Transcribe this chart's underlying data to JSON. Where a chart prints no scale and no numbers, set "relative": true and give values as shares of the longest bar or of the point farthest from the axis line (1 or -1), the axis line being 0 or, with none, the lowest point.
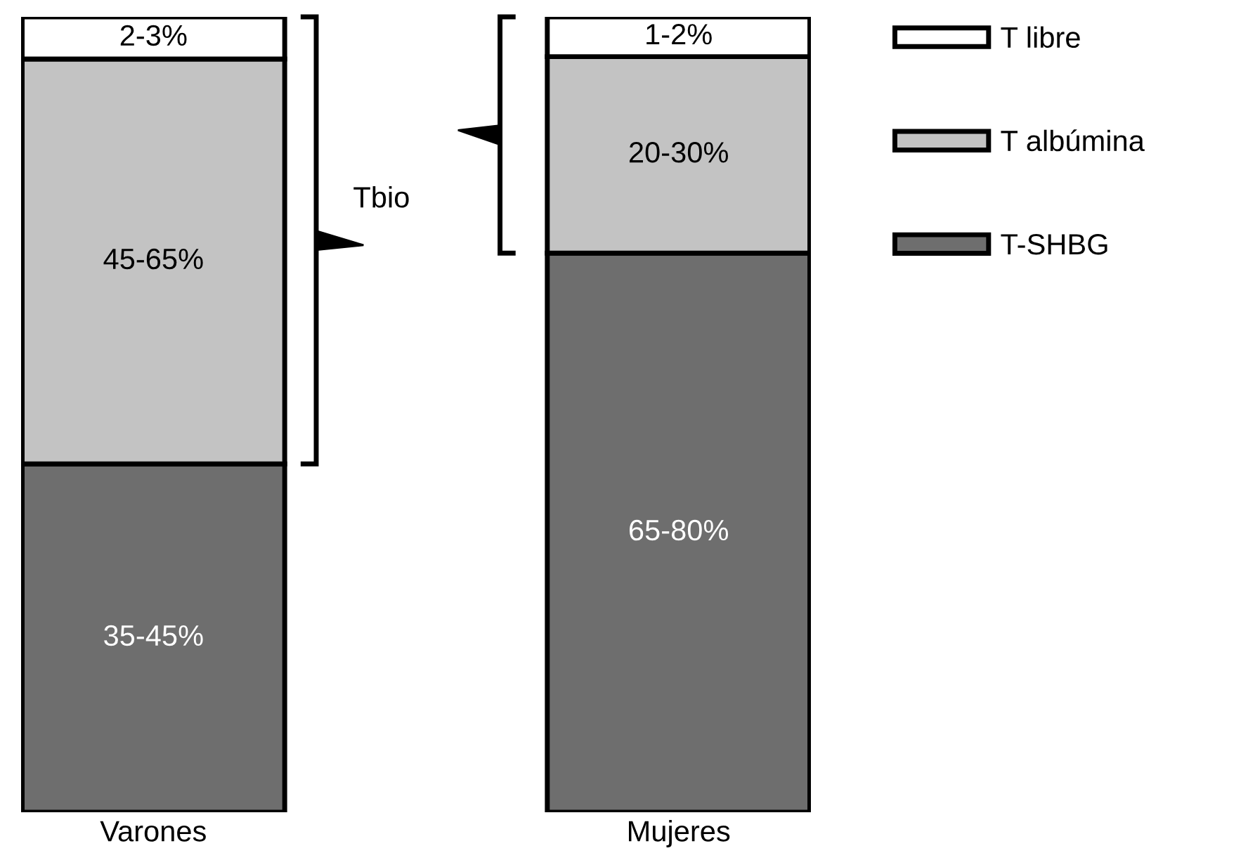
{
  "chart_data": {
    "type": "bar",
    "stacked": true,
    "relative": true,
    "categories": [
      "Varones",
      "Mujeres"
    ],
    "series": [
      {
        "name": "T-SHBG",
        "color": "#6e6e6e",
        "values": [
          0.438,
          0.703
        ]
      },
      {
        "name": "T albúmina",
        "color": "#c3c3c3",
        "values": [
          0.509,
          0.247
        ]
      },
      {
        "name": "T libre",
        "color": "#ffffff",
        "values": [
          0.053,
          0.05
        ]
      }
    ],
    "annotations": [
      "Tbio",
      "35-45%",
      "45-65%",
      "2-3%",
      "65-80%",
      "20-30%",
      "1-2%"
    ],
    "legend": "right",
    "grid": false
  }
}
